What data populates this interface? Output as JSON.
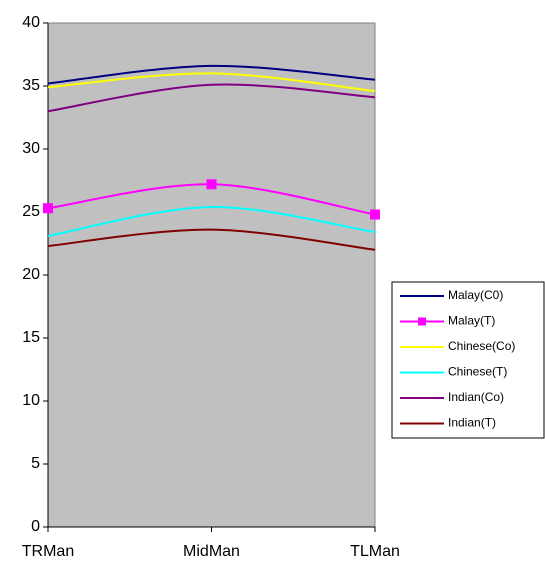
{
  "chart_data": {
    "type": "line",
    "categories": [
      "TRMan",
      "MidMan",
      "TLMan"
    ],
    "series": [
      {
        "name": "Malay(C0)",
        "color": "#000080",
        "values": [
          35.2,
          36.6,
          35.5
        ]
      },
      {
        "name": "Malay(T)",
        "color": "#ff00ff",
        "values": [
          25.3,
          27.2,
          24.8
        ],
        "marker": "square"
      },
      {
        "name": "Chinese(Co)",
        "color": "#ffff00",
        "values": [
          34.9,
          36.0,
          34.6
        ]
      },
      {
        "name": "Chinese(T)",
        "color": "#00ffff",
        "values": [
          23.1,
          25.4,
          23.4
        ]
      },
      {
        "name": "Indian(Co)",
        "color": "#800080",
        "values": [
          33.0,
          35.1,
          34.1
        ]
      },
      {
        "name": "Indian(T)",
        "color": "#800000",
        "values": [
          22.3,
          23.6,
          22.0
        ]
      }
    ],
    "ylim": [
      0,
      40
    ],
    "yticks": [
      0,
      5,
      10,
      15,
      20,
      25,
      30,
      35,
      40
    ],
    "grid": false,
    "legend": "right",
    "background": "#c0c0c0"
  }
}
